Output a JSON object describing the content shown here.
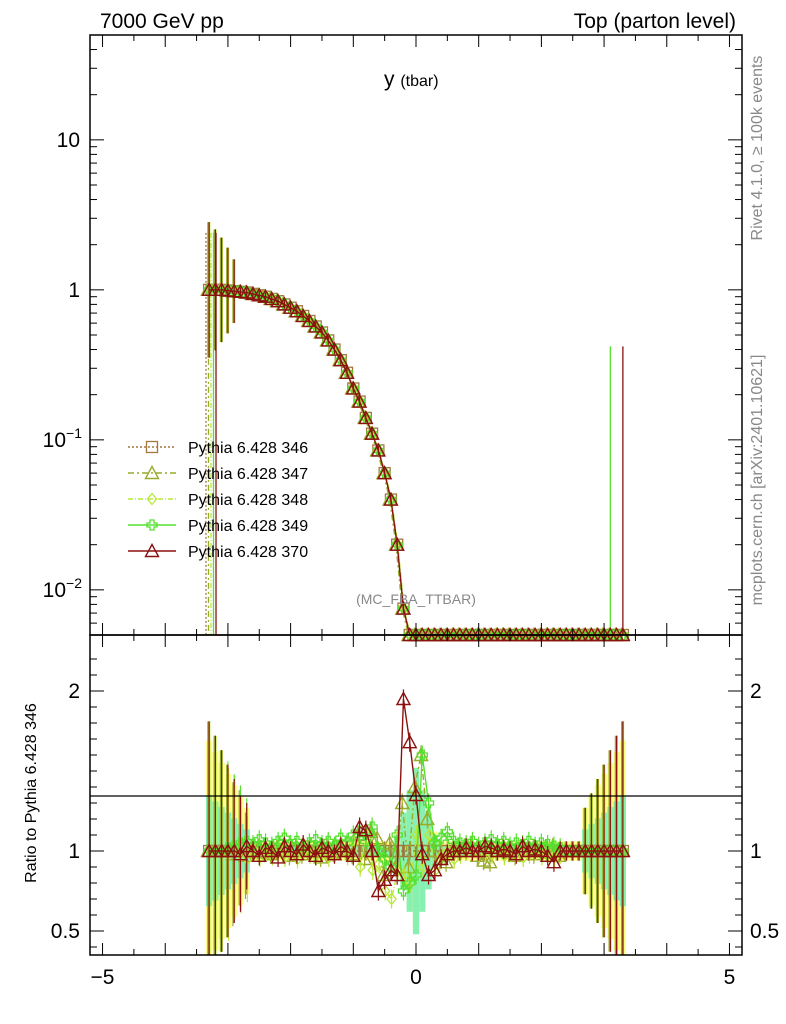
{
  "header": {
    "left": "7000 GeV pp",
    "right": "Top (parton level)"
  },
  "side": {
    "rivet": "Rivet 4.1.0, ≥ 100k events",
    "mcplots": "mcplots.cern.ch [arXiv:2401.10621]"
  },
  "chart_data": {
    "type": "line",
    "title_main": "y",
    "title_sub": "(tbar)",
    "watermark": "(MC_FBA_TTBAR)",
    "xlim": [
      -5.2,
      5.2
    ],
    "x_ticks": [
      "−5",
      "0",
      "5"
    ],
    "x_tick_values": [
      -5,
      0,
      5
    ],
    "top": {
      "yscale": "log",
      "ylim": [
        0.005,
        50
      ],
      "y_ticks": [
        {
          "label": "10",
          "value": 10,
          "sup": ""
        },
        {
          "label": "1",
          "value": 1,
          "sup": ""
        },
        {
          "label": "10",
          "value": 0.1,
          "sup": "−1"
        },
        {
          "label": "10",
          "value": 0.01,
          "sup": "−2"
        }
      ]
    },
    "bottom": {
      "ylabel": "Ratio to Pythia 6.428 346",
      "ylim": [
        0.35,
        2.35
      ],
      "y_ticks": [
        "0.5",
        "1",
        "2"
      ],
      "y_tick_values": [
        0.5,
        1,
        2
      ]
    },
    "x": [
      -3.3,
      -3.2,
      -3.1,
      -3.0,
      -2.9,
      -2.8,
      -2.7,
      -2.6,
      -2.5,
      -2.4,
      -2.3,
      -2.2,
      -2.1,
      -2.0,
      -1.9,
      -1.8,
      -1.7,
      -1.6,
      -1.5,
      -1.4,
      -1.3,
      -1.2,
      -1.1,
      -1.0,
      -0.9,
      -0.8,
      -0.7,
      -0.6,
      -0.5,
      -0.4,
      -0.3,
      -0.2,
      -0.1,
      0.0,
      0.1,
      0.2,
      0.3,
      0.4,
      0.5,
      0.6,
      0.7,
      0.8,
      0.9,
      1.0,
      1.1,
      1.2,
      1.3,
      1.4,
      1.5,
      1.6,
      1.7,
      1.8,
      1.9,
      2.0,
      2.1,
      2.2,
      2.3,
      2.4,
      2.5,
      2.6,
      2.7,
      2.8,
      2.9,
      3.0,
      3.1,
      3.2,
      3.3
    ],
    "reference_values": [
      1.0,
      1.0,
      1.0,
      0.99,
      0.98,
      0.97,
      0.96,
      0.94,
      0.92,
      0.9,
      0.87,
      0.84,
      0.8,
      0.76,
      0.72,
      0.67,
      0.62,
      0.57,
      0.52,
      0.46,
      0.4,
      0.34,
      0.28,
      0.22,
      0.18,
      0.14,
      0.11,
      0.085,
      0.06,
      0.04,
      0.02,
      0.0075,
      0.005,
      0.005,
      0.005,
      0.005,
      0.005,
      0.005,
      0.005,
      0.005,
      0.005,
      0.005,
      0.005,
      0.005,
      0.005,
      0.005,
      0.005,
      0.005,
      0.005,
      0.005,
      0.005,
      0.005,
      0.005,
      0.005,
      0.005,
      0.005,
      0.005,
      0.005,
      0.005,
      0.005,
      0.005,
      0.005,
      0.005,
      0.005,
      0.005,
      0.005,
      0.005
    ],
    "series": [
      {
        "name": "Pythia 6.428 346",
        "color": "#a07840",
        "dash": "2,2",
        "marker": "square",
        "x_shift": 0.0,
        "scale": [
          1,
          1,
          1,
          1,
          1,
          1,
          1,
          1,
          1,
          1,
          1,
          1,
          1,
          1,
          1,
          1,
          1,
          1,
          1,
          1,
          1,
          1,
          1,
          1,
          1,
          1,
          1,
          1,
          1,
          1,
          1,
          1,
          1,
          1,
          1,
          1,
          1,
          1,
          1,
          1,
          1,
          1,
          1,
          1,
          1,
          1,
          1,
          1,
          1,
          1,
          1,
          1,
          1,
          1,
          1,
          1,
          1,
          1,
          1,
          1,
          1,
          1,
          1,
          1,
          1,
          1,
          1
        ],
        "ratio": [
          1.0,
          1.0,
          1.0,
          1.0,
          1.0,
          1.0,
          1.0,
          1.0,
          1.0,
          1.0,
          1.0,
          1.0,
          1.0,
          1.0,
          1.0,
          1.0,
          1.0,
          1.0,
          1.0,
          1.0,
          1.0,
          1.0,
          1.0,
          1.0,
          1.0,
          1.0,
          1.0,
          1.0,
          1.0,
          1.0,
          1.0,
          1.0,
          1.0,
          1.0,
          1.0,
          1.0,
          1.0,
          1.0,
          1.0,
          1.0,
          1.0,
          1.0,
          1.0,
          1.0,
          1.0,
          1.0,
          1.0,
          1.0,
          1.0,
          1.0,
          1.0,
          1.0,
          1.0,
          1.0,
          1.0,
          1.0,
          1.0,
          1.0,
          1.0,
          1.0,
          1.0,
          1.0,
          1.0,
          1.0,
          1.0,
          1.0,
          1.0
        ]
      },
      {
        "name": "Pythia 6.428 347",
        "color": "#9aaa2a",
        "dash": "6,3,2,3",
        "marker": "triangle",
        "x_shift": -0.02,
        "scale": [
          1,
          1,
          1,
          1,
          1,
          1,
          1,
          1,
          1,
          1,
          1,
          1,
          1,
          1,
          1,
          1,
          1,
          1,
          1,
          1,
          1,
          1,
          1,
          1,
          1,
          1,
          1,
          1,
          1,
          1,
          1,
          1,
          1,
          1,
          1,
          1,
          1,
          1,
          1,
          1,
          1,
          1,
          1,
          1,
          1,
          1,
          1,
          1,
          1,
          1,
          1,
          1,
          1,
          1,
          1,
          1,
          1,
          1,
          1,
          1,
          1,
          1,
          1,
          1,
          1,
          1,
          1
        ],
        "ratio": [
          1.0,
          1.0,
          1.0,
          1.0,
          0.98,
          1.02,
          0.97,
          1.0,
          1.02,
          0.99,
          0.98,
          1.01,
          1.0,
          0.97,
          1.02,
          0.98,
          1.01,
          1.0,
          0.96,
          1.02,
          0.99,
          1.01,
          1.0,
          0.98,
          1.1,
          0.95,
          1.12,
          1.08,
          0.85,
          1.05,
          0.9,
          1.3,
          0.9,
          1.4,
          1.6,
          1.2,
          1.0,
          0.95,
          0.93,
          1.0,
          1.0,
          1.02,
          1.03,
          0.97,
          0.94,
          0.93,
          1.0,
          1.02,
          0.99,
          0.97,
          1.0,
          1.01,
          0.98,
          1.0,
          0.99,
          1.02,
          0.97,
          1.0,
          1.0,
          1.0,
          1.0,
          1.0,
          1.0,
          1.0,
          1.0,
          1.0,
          1.0
        ]
      },
      {
        "name": "Pythia 6.428 348",
        "color": "#b8e838",
        "dash": "5,2,1,2",
        "marker": "diamond",
        "x_shift": 0.01,
        "scale": [
          1,
          1,
          1,
          1,
          1,
          1,
          1,
          1,
          1,
          1,
          1,
          1,
          1,
          1,
          1,
          1,
          1,
          1,
          1,
          1,
          1,
          1,
          1,
          1,
          1,
          1,
          1,
          1,
          1,
          1,
          1,
          1,
          1,
          1,
          1,
          1,
          1,
          1,
          1,
          1,
          1,
          1,
          1,
          1,
          1,
          1,
          1,
          1,
          1,
          1,
          1,
          1,
          1,
          1,
          1,
          1,
          1,
          1,
          1,
          1,
          1,
          1,
          1,
          1,
          1,
          1,
          1
        ],
        "ratio": [
          1.0,
          1.0,
          1.0,
          0.98,
          1.02,
          0.97,
          0.95,
          1.01,
          0.96,
          1.0,
          0.97,
          1.02,
          0.96,
          0.99,
          0.95,
          1.01,
          0.98,
          0.97,
          1.0,
          0.96,
          0.99,
          1.02,
          0.97,
          1.05,
          0.9,
          1.1,
          0.88,
          0.92,
          0.75,
          0.7,
          0.88,
          0.85,
          0.8,
          1.1,
          0.9,
          1.1,
          0.88,
          0.97,
          1.0,
          0.95,
          0.98,
          1.0,
          1.01,
          0.99,
          1.0,
          0.98,
          1.02,
          0.97,
          0.99,
          1.01,
          0.96,
          0.98,
          1.0,
          0.97,
          0.99,
          0.96,
          0.98,
          1.0,
          1.0,
          1.0,
          1.0,
          1.0,
          1.0,
          1.0,
          1.0,
          1.0,
          1.0
        ]
      },
      {
        "name": "Pythia 6.428 349",
        "color": "#55e030",
        "dash": "",
        "marker": "cross",
        "x_shift": 0.0,
        "scale": [
          1,
          1,
          1,
          1,
          1,
          1,
          1,
          1,
          1,
          1,
          1,
          1,
          1,
          1,
          1,
          1,
          1,
          1,
          1,
          1,
          1,
          1,
          1,
          1,
          1,
          1,
          1,
          1,
          1,
          1,
          1,
          1,
          1,
          1,
          1,
          1,
          1,
          1,
          1,
          1,
          1,
          1,
          1,
          1,
          1,
          1,
          1,
          1,
          1,
          1,
          1,
          1,
          1,
          1,
          1,
          1,
          1,
          1,
          1,
          1,
          1,
          1,
          1,
          1,
          1,
          1,
          1
        ],
        "ratio": [
          1.0,
          1.0,
          1.0,
          1.02,
          1.03,
          1.05,
          1.06,
          1.04,
          1.07,
          1.05,
          1.03,
          1.06,
          1.08,
          1.04,
          1.06,
          1.03,
          1.05,
          1.07,
          1.04,
          1.06,
          1.03,
          1.08,
          1.05,
          1.1,
          1.12,
          1.06,
          1.15,
          1.0,
          0.95,
          0.9,
          1.1,
          0.75,
          0.8,
          0.85,
          1.6,
          1.3,
          1.05,
          1.08,
          1.12,
          1.06,
          1.05,
          1.04,
          1.06,
          1.03,
          1.05,
          1.07,
          1.04,
          1.06,
          1.03,
          1.05,
          1.04,
          1.06,
          1.03,
          1.05,
          1.04,
          1.03,
          1.02,
          1.0,
          1.0,
          1.0,
          1.0,
          1.0,
          1.0,
          1.0,
          1.0,
          1.0,
          1.0
        ]
      },
      {
        "name": "Pythia 6.428 370",
        "color": "#8b1010",
        "dash": "",
        "marker": "triangle",
        "x_shift": 0.0,
        "scale": [
          1,
          1,
          1,
          1,
          1,
          1,
          1,
          1,
          1,
          1,
          1,
          1,
          1,
          1,
          1,
          1,
          1,
          1,
          1,
          1,
          1,
          1,
          1,
          1,
          1,
          1,
          1,
          1,
          1,
          1,
          1,
          1,
          1,
          1,
          1,
          1,
          1,
          1,
          1,
          1,
          1,
          1,
          1,
          1,
          1,
          1,
          1,
          1,
          1,
          1,
          1,
          1,
          1,
          1,
          1,
          1,
          1,
          1,
          1,
          1,
          1,
          1,
          1,
          1,
          1,
          1,
          1
        ],
        "ratio": [
          1.0,
          1.0,
          1.0,
          1.0,
          1.0,
          0.98,
          1.03,
          1.0,
          0.97,
          1.02,
          1.0,
          0.96,
          1.03,
          1.0,
          0.98,
          1.04,
          1.0,
          0.97,
          1.02,
          1.0,
          0.98,
          1.03,
          1.0,
          0.97,
          1.15,
          1.13,
          1.0,
          0.75,
          0.82,
          0.88,
          0.85,
          1.95,
          1.68,
          1.35,
          0.98,
          0.85,
          0.88,
          0.95,
          0.98,
          1.0,
          1.0,
          1.02,
          1.0,
          1.0,
          1.03,
          1.02,
          1.0,
          1.01,
          1.0,
          0.98,
          1.03,
          1.0,
          1.01,
          1.0,
          0.97,
          0.93,
          1.0,
          1.0,
          1.0,
          1.0,
          1.0,
          1.0,
          1.0,
          1.0,
          1.0,
          1.0,
          1.0
        ]
      }
    ]
  }
}
